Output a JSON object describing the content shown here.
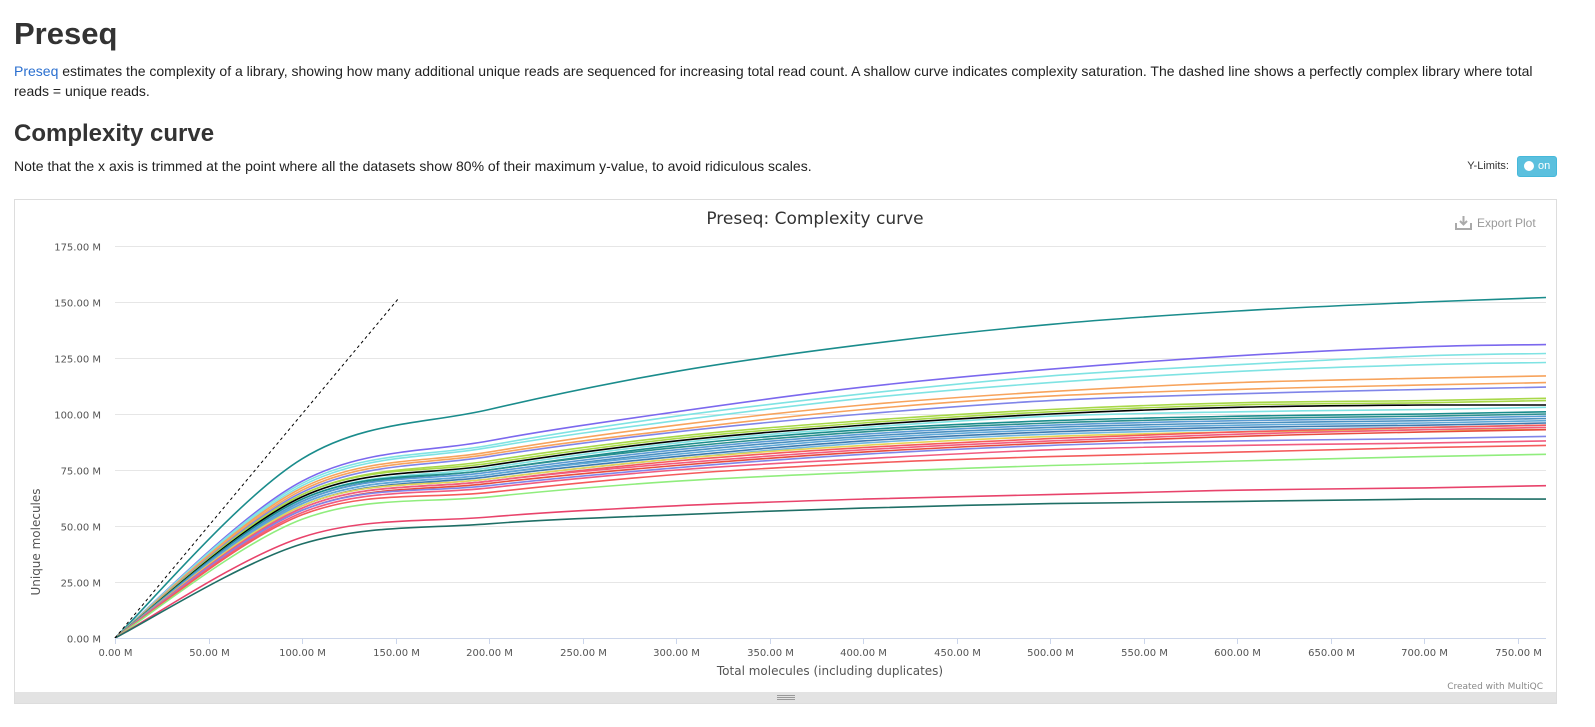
{
  "page": {
    "title": "Preseq",
    "intro_link": "Preseq",
    "intro_text": " estimates the complexity of a library, showing how many additional unique reads are sequenced for increasing total read count. A shallow curve indicates complexity saturation. The dashed line shows a perfectly complex library where total reads = unique reads.",
    "section_title": "Complexity curve",
    "note": "Note that the x axis is trimmed at the point where all the datasets show 80% of their maximum y-value, to avoid ridiculous scales.",
    "ylimits_label": "Y-Limits:",
    "toggle_label": "on",
    "export_label": "Export Plot",
    "credit": "Created with MultiQC"
  },
  "chart_data": {
    "type": "line",
    "title": "Preseq: Complexity curve",
    "xlabel": "Total molecules (including duplicates)",
    "ylabel": "Unique molecules",
    "xlim": [
      0,
      765
    ],
    "ylim": [
      0,
      175
    ],
    "x_unit": "M",
    "y_unit": "M",
    "x_ticks": [
      0,
      50,
      100,
      150,
      200,
      250,
      300,
      350,
      400,
      450,
      500,
      550,
      600,
      650,
      700,
      750
    ],
    "x_tick_labels": [
      "0.00 M",
      "50.00 M",
      "100.00 M",
      "150.00 M",
      "200.00 M",
      "250.00 M",
      "300.00 M",
      "350.00 M",
      "400.00 M",
      "450.00 M",
      "500.00 M",
      "550.00 M",
      "600.00 M",
      "650.00 M",
      "700.00 M",
      "750.00 M"
    ],
    "y_ticks": [
      0,
      25,
      50,
      75,
      100,
      125,
      150,
      175
    ],
    "y_tick_labels": [
      "0.00 M",
      "25.00 M",
      "50.00 M",
      "75.00 M",
      "100.00 M",
      "125.00 M",
      "150.00 M",
      "175.00 M"
    ],
    "grid": true,
    "reference_line": {
      "style": "dashed",
      "color": "#000000",
      "x": [
        0,
        152
      ],
      "y": [
        0,
        152
      ]
    },
    "series": [
      {
        "color": "#1a8c8c",
        "x": [
          0,
          100,
          200,
          300,
          400,
          500,
          600,
          700,
          765
        ],
        "y": [
          0,
          80,
          102,
          119,
          131,
          140,
          146,
          150,
          152
        ]
      },
      {
        "color": "#7b68ee",
        "x": [
          0,
          100,
          200,
          300,
          400,
          500,
          600,
          700,
          765
        ],
        "y": [
          0,
          70,
          88,
          101,
          112,
          120,
          126,
          130,
          131
        ]
      },
      {
        "color": "#7fe3e3",
        "x": [
          0,
          100,
          200,
          300,
          400,
          500,
          600,
          700,
          765
        ],
        "y": [
          0,
          69,
          86,
          99,
          109,
          117,
          122,
          126,
          127
        ]
      },
      {
        "color": "#7fe3e3",
        "x": [
          0,
          100,
          200,
          300,
          400,
          500,
          600,
          700,
          765
        ],
        "y": [
          0,
          68,
          85,
          97,
          107,
          114,
          119,
          122,
          123
        ]
      },
      {
        "color": "#f7a35c",
        "x": [
          0,
          100,
          200,
          300,
          400,
          500,
          600,
          700,
          765
        ],
        "y": [
          0,
          67,
          83,
          95,
          104,
          110,
          114,
          116,
          117
        ]
      },
      {
        "color": "#f7a35c",
        "x": [
          0,
          100,
          200,
          300,
          400,
          500,
          600,
          700,
          765
        ],
        "y": [
          0,
          66,
          82,
          93,
          102,
          108,
          111,
          113,
          114
        ]
      },
      {
        "color": "#8085e9",
        "x": [
          0,
          100,
          200,
          300,
          400,
          500,
          600,
          700,
          765
        ],
        "y": [
          0,
          65,
          81,
          92,
          100,
          106,
          109,
          111,
          112
        ]
      },
      {
        "color": "#a8d848",
        "x": [
          0,
          100,
          200,
          300,
          400,
          500,
          600,
          700,
          765
        ],
        "y": [
          0,
          64,
          79,
          90,
          97,
          102,
          105,
          106,
          107
        ]
      },
      {
        "color": "#a8d848",
        "x": [
          0,
          100,
          200,
          300,
          400,
          500,
          600,
          700,
          765
        ],
        "y": [
          0,
          64,
          78,
          89,
          96,
          101,
          104,
          105,
          106
        ]
      },
      {
        "color": "#000000",
        "x": [
          0,
          100,
          200,
          300,
          400,
          500,
          600,
          700,
          765
        ],
        "y": [
          0,
          63,
          77,
          88,
          95,
          100,
          103,
          104,
          104
        ]
      },
      {
        "color": "#7fe3e3",
        "x": [
          0,
          100,
          200,
          300,
          400,
          500,
          600,
          700,
          765
        ],
        "y": [
          0,
          62,
          76,
          87,
          94,
          99,
          101,
          102,
          103
        ]
      },
      {
        "color": "#1a8c8c",
        "x": [
          0,
          100,
          200,
          300,
          400,
          500,
          600,
          700,
          765
        ],
        "y": [
          0,
          62,
          75,
          86,
          93,
          97,
          99,
          100,
          101
        ]
      },
      {
        "color": "#2b908f",
        "x": [
          0,
          100,
          200,
          300,
          400,
          500,
          600,
          700,
          765
        ],
        "y": [
          0,
          61,
          75,
          85,
          92,
          96,
          98,
          99,
          100
        ]
      },
      {
        "color": "#5a9bd4",
        "x": [
          0,
          100,
          200,
          300,
          400,
          500,
          600,
          700,
          765
        ],
        "y": [
          0,
          61,
          74,
          84,
          91,
          95,
          97,
          98,
          99
        ]
      },
      {
        "color": "#4a90c0",
        "x": [
          0,
          100,
          200,
          300,
          400,
          500,
          600,
          700,
          765
        ],
        "y": [
          0,
          60,
          73,
          83,
          90,
          94,
          96,
          97,
          98
        ]
      },
      {
        "color": "#5fa8d8",
        "x": [
          0,
          100,
          200,
          300,
          400,
          500,
          600,
          700,
          765
        ],
        "y": [
          0,
          60,
          73,
          82,
          89,
          93,
          95,
          96,
          97
        ]
      },
      {
        "color": "#3d7ab0",
        "x": [
          0,
          100,
          200,
          300,
          400,
          500,
          600,
          700,
          765
        ],
        "y": [
          0,
          59,
          72,
          81,
          88,
          92,
          94,
          95,
          96
        ]
      },
      {
        "color": "#6fb5e0",
        "x": [
          0,
          100,
          200,
          300,
          400,
          500,
          600,
          700,
          765
        ],
        "y": [
          0,
          59,
          71,
          80,
          87,
          91,
          93,
          94,
          95
        ]
      },
      {
        "color": "#e4d354",
        "x": [
          0,
          100,
          200,
          300,
          400,
          500,
          600,
          700,
          765
        ],
        "y": [
          0,
          59,
          71,
          80,
          86,
          90,
          92,
          93,
          93
        ]
      },
      {
        "color": "#f45b5b",
        "x": [
          0,
          100,
          200,
          300,
          400,
          500,
          600,
          700,
          765
        ],
        "y": [
          0,
          58,
          70,
          79,
          85,
          89,
          92,
          94,
          95
        ]
      },
      {
        "color": "#f15c80",
        "x": [
          0,
          100,
          200,
          300,
          400,
          500,
          600,
          700,
          765
        ],
        "y": [
          0,
          58,
          70,
          78,
          84,
          88,
          91,
          93,
          94
        ]
      },
      {
        "color": "#e74c3c",
        "x": [
          0,
          100,
          200,
          300,
          400,
          500,
          600,
          700,
          765
        ],
        "y": [
          0,
          57,
          69,
          77,
          83,
          87,
          90,
          92,
          93
        ]
      },
      {
        "color": "#8085e9",
        "x": [
          0,
          100,
          200,
          300,
          400,
          500,
          600,
          700,
          765
        ],
        "y": [
          0,
          57,
          68,
          76,
          82,
          86,
          88,
          89,
          90
        ]
      },
      {
        "color": "#f15c80",
        "x": [
          0,
          100,
          200,
          300,
          400,
          500,
          600,
          700,
          765
        ],
        "y": [
          0,
          56,
          67,
          75,
          80,
          84,
          86,
          87,
          88
        ]
      },
      {
        "color": "#f45b5b",
        "x": [
          0,
          100,
          200,
          300,
          400,
          500,
          600,
          700,
          765
        ],
        "y": [
          0,
          55,
          65,
          73,
          78,
          81,
          83,
          85,
          86
        ]
      },
      {
        "color": "#90ed7d",
        "x": [
          0,
          100,
          200,
          300,
          400,
          500,
          600,
          700,
          765
        ],
        "y": [
          0,
          53,
          63,
          70,
          74,
          77,
          79,
          81,
          82
        ]
      },
      {
        "color": "#e8436b",
        "x": [
          0,
          100,
          200,
          300,
          400,
          500,
          600,
          700,
          765
        ],
        "y": [
          0,
          45,
          54,
          59,
          62,
          64,
          66,
          67,
          68
        ]
      },
      {
        "color": "#1f6f66",
        "x": [
          0,
          100,
          200,
          300,
          400,
          500,
          600,
          700,
          765
        ],
        "y": [
          0,
          42,
          51,
          55,
          58,
          60,
          61,
          62,
          62
        ]
      }
    ]
  }
}
